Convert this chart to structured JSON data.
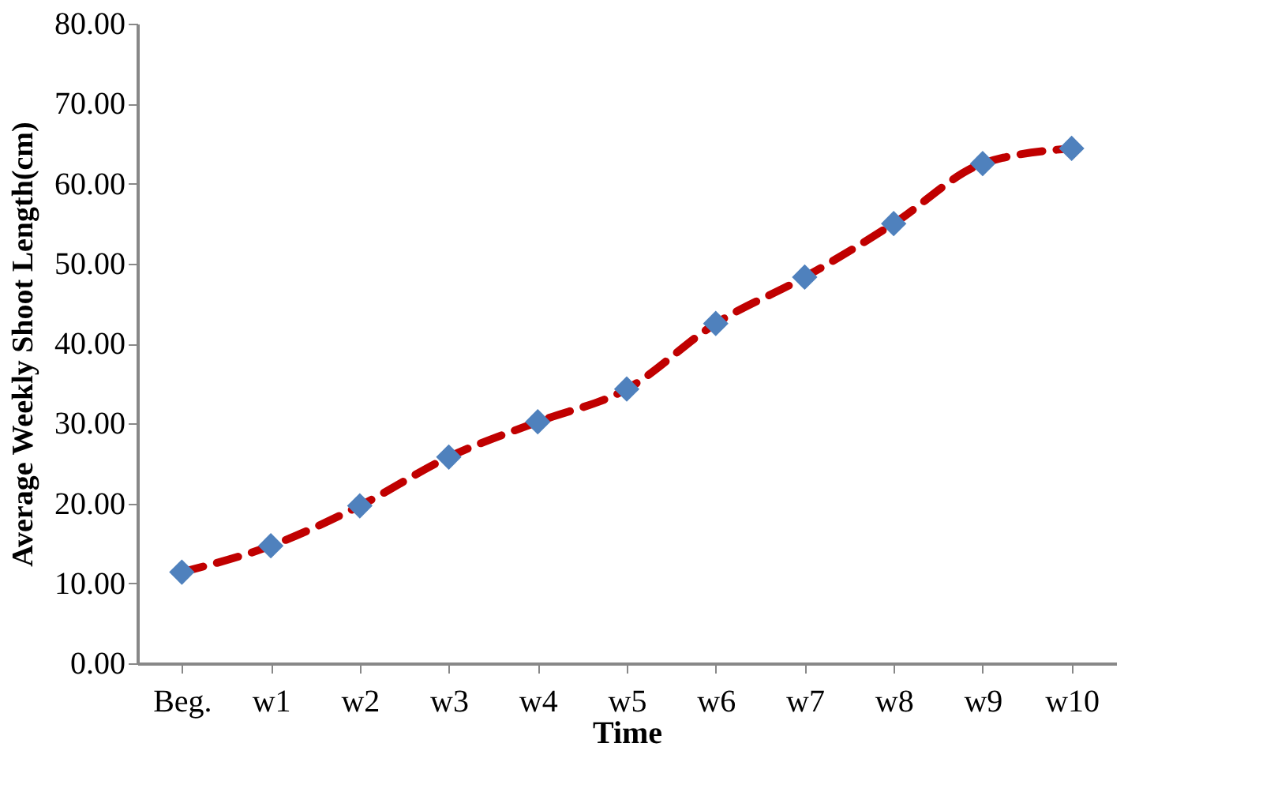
{
  "chart_data": {
    "type": "line",
    "xlabel": "Time",
    "ylabel": "Average Weekly Shoot Length(cm)",
    "categories": [
      "Beg.",
      "w1",
      "w2",
      "w3",
      "w4",
      "w5",
      "w6",
      "w7",
      "w8",
      "w9",
      "w10"
    ],
    "series": [
      {
        "color": "#c00000",
        "colors": [
          "#4f81bd",
          "#4f81bd",
          "#4f81bd",
          "#4f81bd",
          "#4f81bd",
          "#4f81bd",
          "#4f81bd",
          "#4f81bd",
          "#4f81bd",
          "#4f81bd",
          "#4f81bd"
        ],
        "values": [
          11.4,
          14.7,
          19.7,
          25.8,
          30.2,
          34.3,
          42.5,
          48.3,
          55.0,
          62.5,
          64.4
        ]
      }
    ],
    "ylim": [
      0,
      80
    ],
    "yticks": [
      {
        "value": 0,
        "label": "0.00"
      },
      {
        "value": 10,
        "label": "10.00"
      },
      {
        "value": 20,
        "label": "20.00"
      },
      {
        "value": 30,
        "label": "30.00"
      },
      {
        "value": 40,
        "label": "40.00"
      },
      {
        "value": 50,
        "label": "50.00"
      },
      {
        "value": 60,
        "label": "60.00"
      },
      {
        "value": 70,
        "label": "70.00"
      },
      {
        "value": 80,
        "label": "80.00"
      }
    ],
    "grid": false,
    "marker": "diamond",
    "line_style": "dashed"
  }
}
